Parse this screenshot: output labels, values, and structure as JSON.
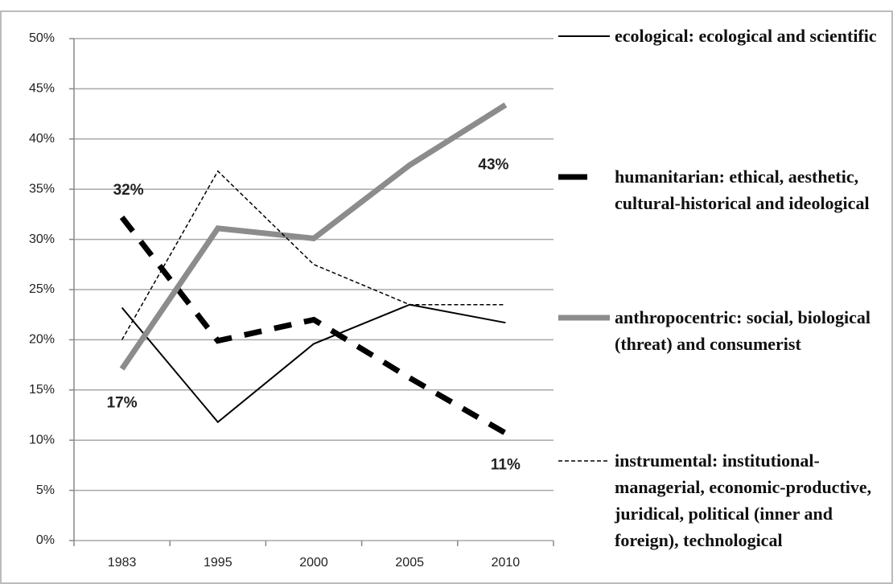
{
  "chart_data": {
    "type": "line",
    "categories": [
      "1983",
      "1995",
      "2000",
      "2005",
      "2010"
    ],
    "series": [
      {
        "name": "ecological: ecological and scientific",
        "color": "#000000",
        "values": [
          23.2,
          11.8,
          19.6,
          23.5,
          21.7
        ]
      },
      {
        "name": "humanitarian: ethical, aesthetic, cultural-historical and ideological",
        "color": "#000000",
        "values": [
          32.2,
          19.9,
          22,
          16.2,
          10.7
        ],
        "value_labels": [
          "32%",
          null,
          null,
          null,
          "11%"
        ]
      },
      {
        "name": "anthropocentric: social, biological (threat) and consumerist",
        "color": "#8c8c8c",
        "values": [
          17.1,
          31.1,
          30.1,
          37.4,
          43.4
        ],
        "value_labels": [
          "17%",
          null,
          null,
          null,
          "43%"
        ]
      },
      {
        "name": "instrumental: institutional-managerial, economic-productive, juridical, political (inner and foreign), technological",
        "color": "#000000",
        "values": [
          20,
          36.8,
          27.5,
          23.5,
          23.5
        ]
      }
    ],
    "ylim": [
      0,
      50
    ],
    "yticks": [
      {
        "value": 0,
        "label": "0%"
      },
      {
        "value": 5,
        "label": "5%"
      },
      {
        "value": 10,
        "label": "10%"
      },
      {
        "value": 15,
        "label": "15%"
      },
      {
        "value": 20,
        "label": "20%"
      },
      {
        "value": 25,
        "label": "25%"
      },
      {
        "value": 30,
        "label": "30%"
      },
      {
        "value": 35,
        "label": "35%"
      },
      {
        "value": 40,
        "label": "40%"
      },
      {
        "value": 45,
        "label": "45%"
      },
      {
        "value": 50,
        "label": "50%"
      }
    ],
    "grid": true
  }
}
